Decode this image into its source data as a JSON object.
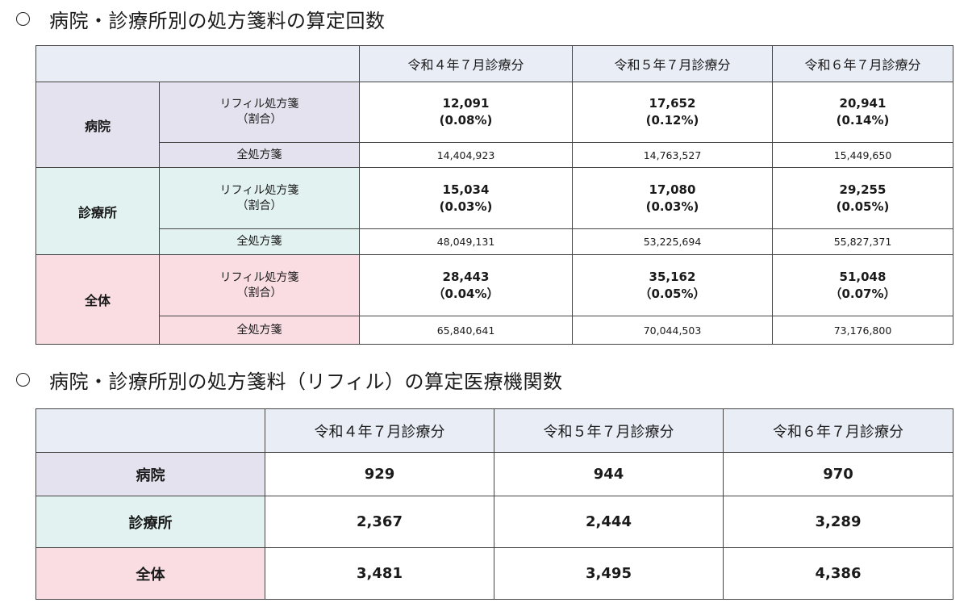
{
  "section1": {
    "title": "病院・診療所別の処方箋料の算定回数",
    "columns": [
      "令和４年７月診療分",
      "令和５年７月診療分",
      "令和６年７月診療分"
    ],
    "groups": [
      {
        "label": "病院",
        "refill_label": "リフィル処方箋",
        "ratio_label": "（割合）",
        "refill": [
          {
            "count": "12,091",
            "ratio": "(0.08%)"
          },
          {
            "count": "17,652",
            "ratio": "(0.12%)"
          },
          {
            "count": "20,941",
            "ratio": "(0.14%)"
          }
        ],
        "total_label": "全処方箋",
        "total": [
          "14,404,923",
          "14,763,527",
          "15,449,650"
        ]
      },
      {
        "label": "診療所",
        "refill_label": "リフィル処方箋",
        "ratio_label": "（割合）",
        "refill": [
          {
            "count": "15,034",
            "ratio": "(0.03%)"
          },
          {
            "count": "17,080",
            "ratio": "(0.03%)"
          },
          {
            "count": "29,255",
            "ratio": "(0.05%)"
          }
        ],
        "total_label": "全処方箋",
        "total": [
          "48,049,131",
          "53,225,694",
          "55,827,371"
        ]
      },
      {
        "label": "全体",
        "refill_label": "リフィル処方箋",
        "ratio_label": "（割合）",
        "refill": [
          {
            "count": "28,443",
            "ratio": "（0.04%）"
          },
          {
            "count": "35,162",
            "ratio": "（0.05%）"
          },
          {
            "count": "51,048",
            "ratio": "（0.07%）"
          }
        ],
        "total_label": "全処方箋",
        "total": [
          "65,840,641",
          "70,044,503",
          "73,176,800"
        ]
      }
    ]
  },
  "section2": {
    "title": "病院・診療所別の処方箋料（リフィル）の算定医療機関数",
    "columns": [
      "令和４年７月診療分",
      "令和５年７月診療分",
      "令和６年７月診療分"
    ],
    "rows": [
      {
        "label": "病院",
        "values": [
          "929",
          "944",
          "970"
        ]
      },
      {
        "label": "診療所",
        "values": [
          "2,367",
          "2,444",
          "3,289"
        ]
      },
      {
        "label": "全体",
        "values": [
          "3,481",
          "3,495",
          "4,386"
        ]
      }
    ]
  }
}
